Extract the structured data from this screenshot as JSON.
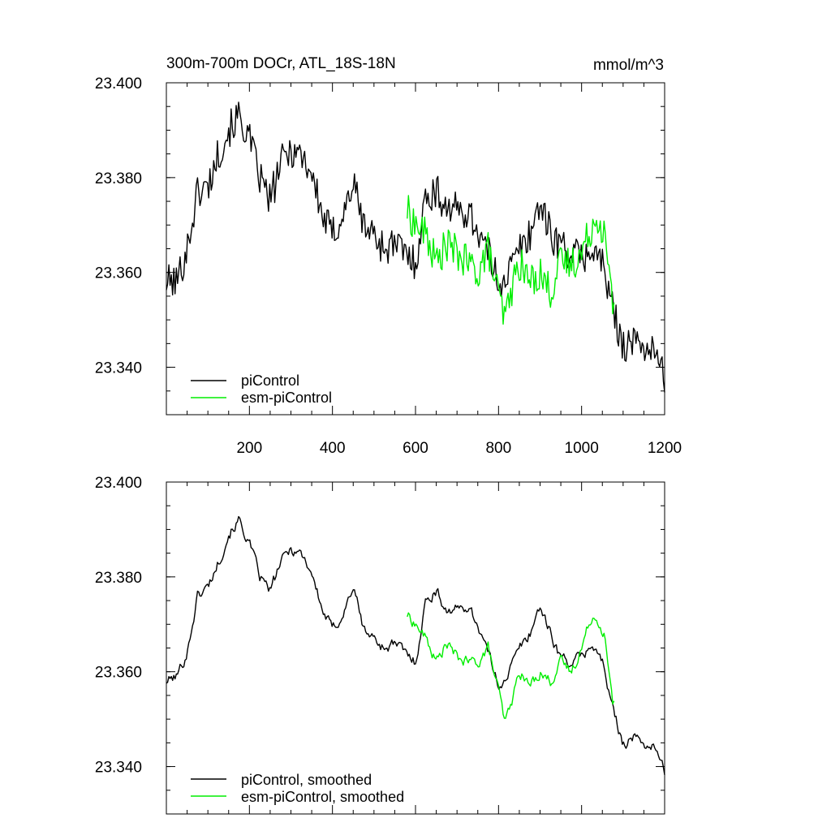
{
  "colors": {
    "piControl": "#000000",
    "esm-piControl": "#00ee00"
  },
  "chart_data": [
    {
      "type": "line",
      "title": "300m-700m DOCr, ATL_18S-18N",
      "units": "mmol/m^3",
      "xlim": [
        0,
        1200
      ],
      "ylim": [
        23.33,
        23.4
      ],
      "xticks": [
        200,
        400,
        600,
        800,
        1000,
        1200
      ],
      "xtick_labels": [
        "200",
        "400",
        "600",
        "800",
        "1000",
        "1200"
      ],
      "yticks": [
        23.34,
        23.36,
        23.38,
        23.4
      ],
      "ytick_labels": [
        "23.340",
        "23.360",
        "23.380",
        "23.400"
      ],
      "grid": false,
      "legend": "bottom-left",
      "series": [
        {
          "name": "piControl",
          "color": "#000000",
          "x": [
            0,
            25,
            50,
            75,
            100,
            125,
            150,
            175,
            200,
            225,
            250,
            275,
            300,
            325,
            350,
            375,
            400,
            425,
            450,
            475,
            500,
            525,
            550,
            575,
            600,
            625,
            650,
            675,
            700,
            725,
            750,
            775,
            800,
            825,
            850,
            875,
            900,
            925,
            950,
            975,
            1000,
            1025,
            1050,
            1075,
            1100,
            1125,
            1150,
            1175,
            1200
          ],
          "y": [
            23.358,
            23.358,
            23.365,
            23.377,
            23.378,
            23.385,
            23.39,
            23.393,
            23.388,
            23.38,
            23.375,
            23.383,
            23.386,
            23.385,
            23.381,
            23.372,
            23.368,
            23.372,
            23.379,
            23.37,
            23.368,
            23.365,
            23.366,
            23.364,
            23.362,
            23.376,
            23.377,
            23.374,
            23.373,
            23.373,
            23.369,
            23.364,
            23.358,
            23.36,
            23.365,
            23.368,
            23.375,
            23.368,
            23.366,
            23.364,
            23.363,
            23.365,
            23.362,
            23.352,
            23.345,
            23.345,
            23.345,
            23.343,
            23.338
          ]
        },
        {
          "name": "esm-piControl",
          "color": "#00ee00",
          "x": [
            580,
            600,
            625,
            650,
            675,
            700,
            725,
            750,
            775,
            800,
            815,
            830,
            850,
            875,
            900,
            925,
            950,
            975,
            1000,
            1025,
            1040,
            1055,
            1065,
            1075,
            1080
          ],
          "y": [
            23.373,
            23.37,
            23.368,
            23.362,
            23.366,
            23.364,
            23.362,
            23.36,
            23.365,
            23.355,
            23.35,
            23.356,
            23.362,
            23.358,
            23.36,
            23.356,
            23.362,
            23.362,
            23.364,
            23.37,
            23.372,
            23.368,
            23.36,
            23.353,
            23.357
          ]
        }
      ]
    },
    {
      "type": "line",
      "xlim": [
        0,
        1200
      ],
      "ylim": [
        23.33,
        23.4
      ],
      "xticks": [
        200,
        400,
        600,
        800,
        1000,
        1200
      ],
      "yticks": [
        23.34,
        23.36,
        23.38,
        23.4
      ],
      "ytick_labels": [
        "23.340",
        "23.360",
        "23.380",
        "23.400"
      ],
      "grid": false,
      "legend": "bottom-left",
      "series": [
        {
          "name": "piControl, smoothed",
          "color": "#000000",
          "x": [
            0,
            25,
            50,
            75,
            100,
            125,
            150,
            175,
            200,
            225,
            250,
            275,
            300,
            325,
            350,
            375,
            400,
            425,
            450,
            475,
            500,
            525,
            550,
            575,
            600,
            625,
            650,
            675,
            700,
            725,
            750,
            775,
            800,
            825,
            850,
            875,
            900,
            925,
            950,
            975,
            1000,
            1025,
            1050,
            1075,
            1100,
            1125,
            1150,
            1175,
            1200
          ],
          "y": [
            23.358,
            23.359,
            23.364,
            23.376,
            23.378,
            23.383,
            23.389,
            23.392,
            23.387,
            23.38,
            23.377,
            23.383,
            23.386,
            23.385,
            23.381,
            23.373,
            23.369,
            23.372,
            23.378,
            23.369,
            23.367,
            23.365,
            23.366,
            23.364,
            23.362,
            23.375,
            23.377,
            23.373,
            23.373,
            23.374,
            23.37,
            23.364,
            23.357,
            23.36,
            23.365,
            23.368,
            23.374,
            23.368,
            23.363,
            23.362,
            23.363,
            23.366,
            23.362,
            23.352,
            23.345,
            23.346,
            23.345,
            23.344,
            23.339
          ]
        },
        {
          "name": "esm-piControl, smoothed",
          "color": "#00ee00",
          "x": [
            580,
            600,
            625,
            650,
            675,
            700,
            725,
            750,
            775,
            800,
            815,
            830,
            850,
            875,
            900,
            925,
            950,
            975,
            1000,
            1025,
            1040,
            1055,
            1065,
            1075,
            1080
          ],
          "y": [
            23.372,
            23.37,
            23.367,
            23.362,
            23.366,
            23.363,
            23.362,
            23.362,
            23.365,
            23.356,
            23.349,
            23.353,
            23.36,
            23.357,
            23.36,
            23.358,
            23.362,
            23.36,
            23.365,
            23.372,
            23.371,
            23.368,
            23.36,
            23.353,
            23.355
          ]
        }
      ]
    }
  ]
}
